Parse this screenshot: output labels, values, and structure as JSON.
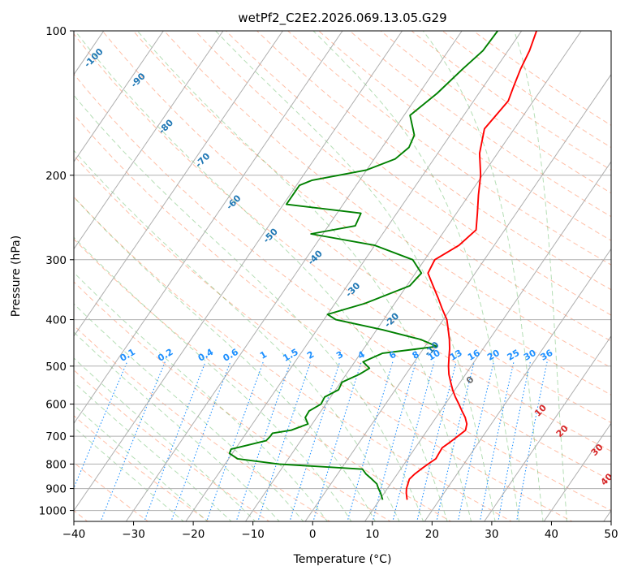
{
  "chart_data": {
    "type": "line",
    "subtype": "skew-T log-P diagram",
    "title": "wetPf2_C2E2.2026.069.13.05.G29",
    "xlabel": "Temperature (°C)",
    "ylabel": "Pressure (hPa)",
    "xlim": [
      -40,
      50
    ],
    "ylim": [
      1050,
      100
    ],
    "y_scale": "log",
    "skew_per_decade_C": 55,
    "x_ticks": [
      -40,
      -30,
      -20,
      -10,
      0,
      10,
      20,
      30,
      40,
      50
    ],
    "x_tick_labels": [
      "−40",
      "−30",
      "−20",
      "−10",
      "0",
      "10",
      "20",
      "30",
      "40",
      "50"
    ],
    "y_ticks": [
      100,
      200,
      300,
      400,
      500,
      600,
      700,
      800,
      900,
      1000
    ],
    "y_tick_labels": [
      "100",
      "200",
      "300",
      "400",
      "500",
      "600",
      "700",
      "800",
      "900",
      "1000"
    ],
    "grid": true,
    "colors": {
      "temperature": "#ff0000",
      "dewpoint": "#008000",
      "isotherm": "#a0a0a0",
      "dry_adiabat": "#ff7f50",
      "moist_adiabat": "#2ca02c",
      "mixing_ratio": "#1e90ff",
      "frost_point_label": "#1f77b4",
      "theta_label": "#d62728"
    },
    "series": [
      {
        "role": "temperature",
        "points": [
          [
            950,
            14.6
          ],
          [
            920,
            13.7
          ],
          [
            900,
            13.2
          ],
          [
            880,
            12.9
          ],
          [
            860,
            12.6
          ],
          [
            840,
            12.9
          ],
          [
            820,
            13.4
          ],
          [
            800,
            14.0
          ],
          [
            780,
            14.7
          ],
          [
            760,
            14.6
          ],
          [
            740,
            14.5
          ],
          [
            720,
            15.2
          ],
          [
            700,
            15.8
          ],
          [
            680,
            16.4
          ],
          [
            660,
            15.9
          ],
          [
            640,
            14.9
          ],
          [
            620,
            13.6
          ],
          [
            600,
            12.3
          ],
          [
            580,
            10.9
          ],
          [
            560,
            9.6
          ],
          [
            540,
            8.4
          ],
          [
            520,
            7.2
          ],
          [
            500,
            6.2
          ],
          [
            480,
            5.3
          ],
          [
            460,
            4.4
          ],
          [
            440,
            3.3
          ],
          [
            420,
            2.0
          ],
          [
            400,
            0.6
          ],
          [
            380,
            -1.4
          ],
          [
            360,
            -3.4
          ],
          [
            340,
            -5.6
          ],
          [
            320,
            -7.9
          ],
          [
            300,
            -8.3
          ],
          [
            280,
            -5.9
          ],
          [
            260,
            -4.8
          ],
          [
            240,
            -6.5
          ],
          [
            220,
            -8.4
          ],
          [
            200,
            -10.3
          ],
          [
            180,
            -13.0
          ],
          [
            160,
            -15.0
          ],
          [
            150,
            -14.6
          ],
          [
            140,
            -14.2
          ],
          [
            130,
            -15.0
          ],
          [
            120,
            -15.8
          ],
          [
            110,
            -16.4
          ],
          [
            100,
            -17.5
          ]
        ]
      },
      {
        "role": "dewpoint",
        "points": [
          [
            950,
            10.5
          ],
          [
            920,
            9.4
          ],
          [
            900,
            8.5
          ],
          [
            880,
            7.7
          ],
          [
            860,
            6.3
          ],
          [
            840,
            4.8
          ],
          [
            820,
            3.6
          ],
          [
            800,
            -11.0
          ],
          [
            780,
            -18.5
          ],
          [
            760,
            -20.5
          ],
          [
            745,
            -20.7
          ],
          [
            730,
            -18.3
          ],
          [
            715,
            -15.8
          ],
          [
            700,
            -15.6
          ],
          [
            690,
            -15.6
          ],
          [
            680,
            -12.8
          ],
          [
            660,
            -10.7
          ],
          [
            640,
            -11.9
          ],
          [
            620,
            -12.0
          ],
          [
            600,
            -10.8
          ],
          [
            580,
            -11.0
          ],
          [
            560,
            -9.5
          ],
          [
            540,
            -9.8
          ],
          [
            520,
            -7.8
          ],
          [
            505,
            -6.8
          ],
          [
            490,
            -8.6
          ],
          [
            470,
            -6.3
          ],
          [
            455,
            2.0
          ],
          [
            440,
            -1.5
          ],
          [
            420,
            -9.0
          ],
          [
            400,
            -18.0
          ],
          [
            390,
            -20.0
          ],
          [
            370,
            -15.0
          ],
          [
            340,
            -9.5
          ],
          [
            320,
            -9.0
          ],
          [
            300,
            -12.0
          ],
          [
            280,
            -20.0
          ],
          [
            265,
            -32.0
          ],
          [
            255,
            -25.5
          ],
          [
            240,
            -26.0
          ],
          [
            230,
            -39.5
          ],
          [
            210,
            -39.5
          ],
          [
            205,
            -38.0
          ],
          [
            195,
            -30.0
          ],
          [
            185,
            -26.5
          ],
          [
            175,
            -25.5
          ],
          [
            165,
            -26.0
          ],
          [
            150,
            -29.0
          ],
          [
            135,
            -27.0
          ],
          [
            120,
            -25.5
          ],
          [
            110,
            -24.2
          ],
          [
            100,
            -24.0
          ]
        ]
      }
    ],
    "annotations": {
      "mixing_ratio_labels": [
        "0.1",
        "0.2",
        "0.4",
        "0.6",
        "1",
        "1.5",
        "2",
        "3",
        "4",
        "6",
        "8",
        "10",
        "13",
        "16",
        "20",
        "25",
        "30",
        "36"
      ],
      "frost_point_labels": [
        "-100",
        "-90",
        "-80",
        "-70",
        "-60",
        "-50",
        "-40",
        "-30",
        "-20",
        "-10",
        "0"
      ],
      "theta_labels": [
        "10",
        "20",
        "30",
        "40"
      ]
    }
  }
}
